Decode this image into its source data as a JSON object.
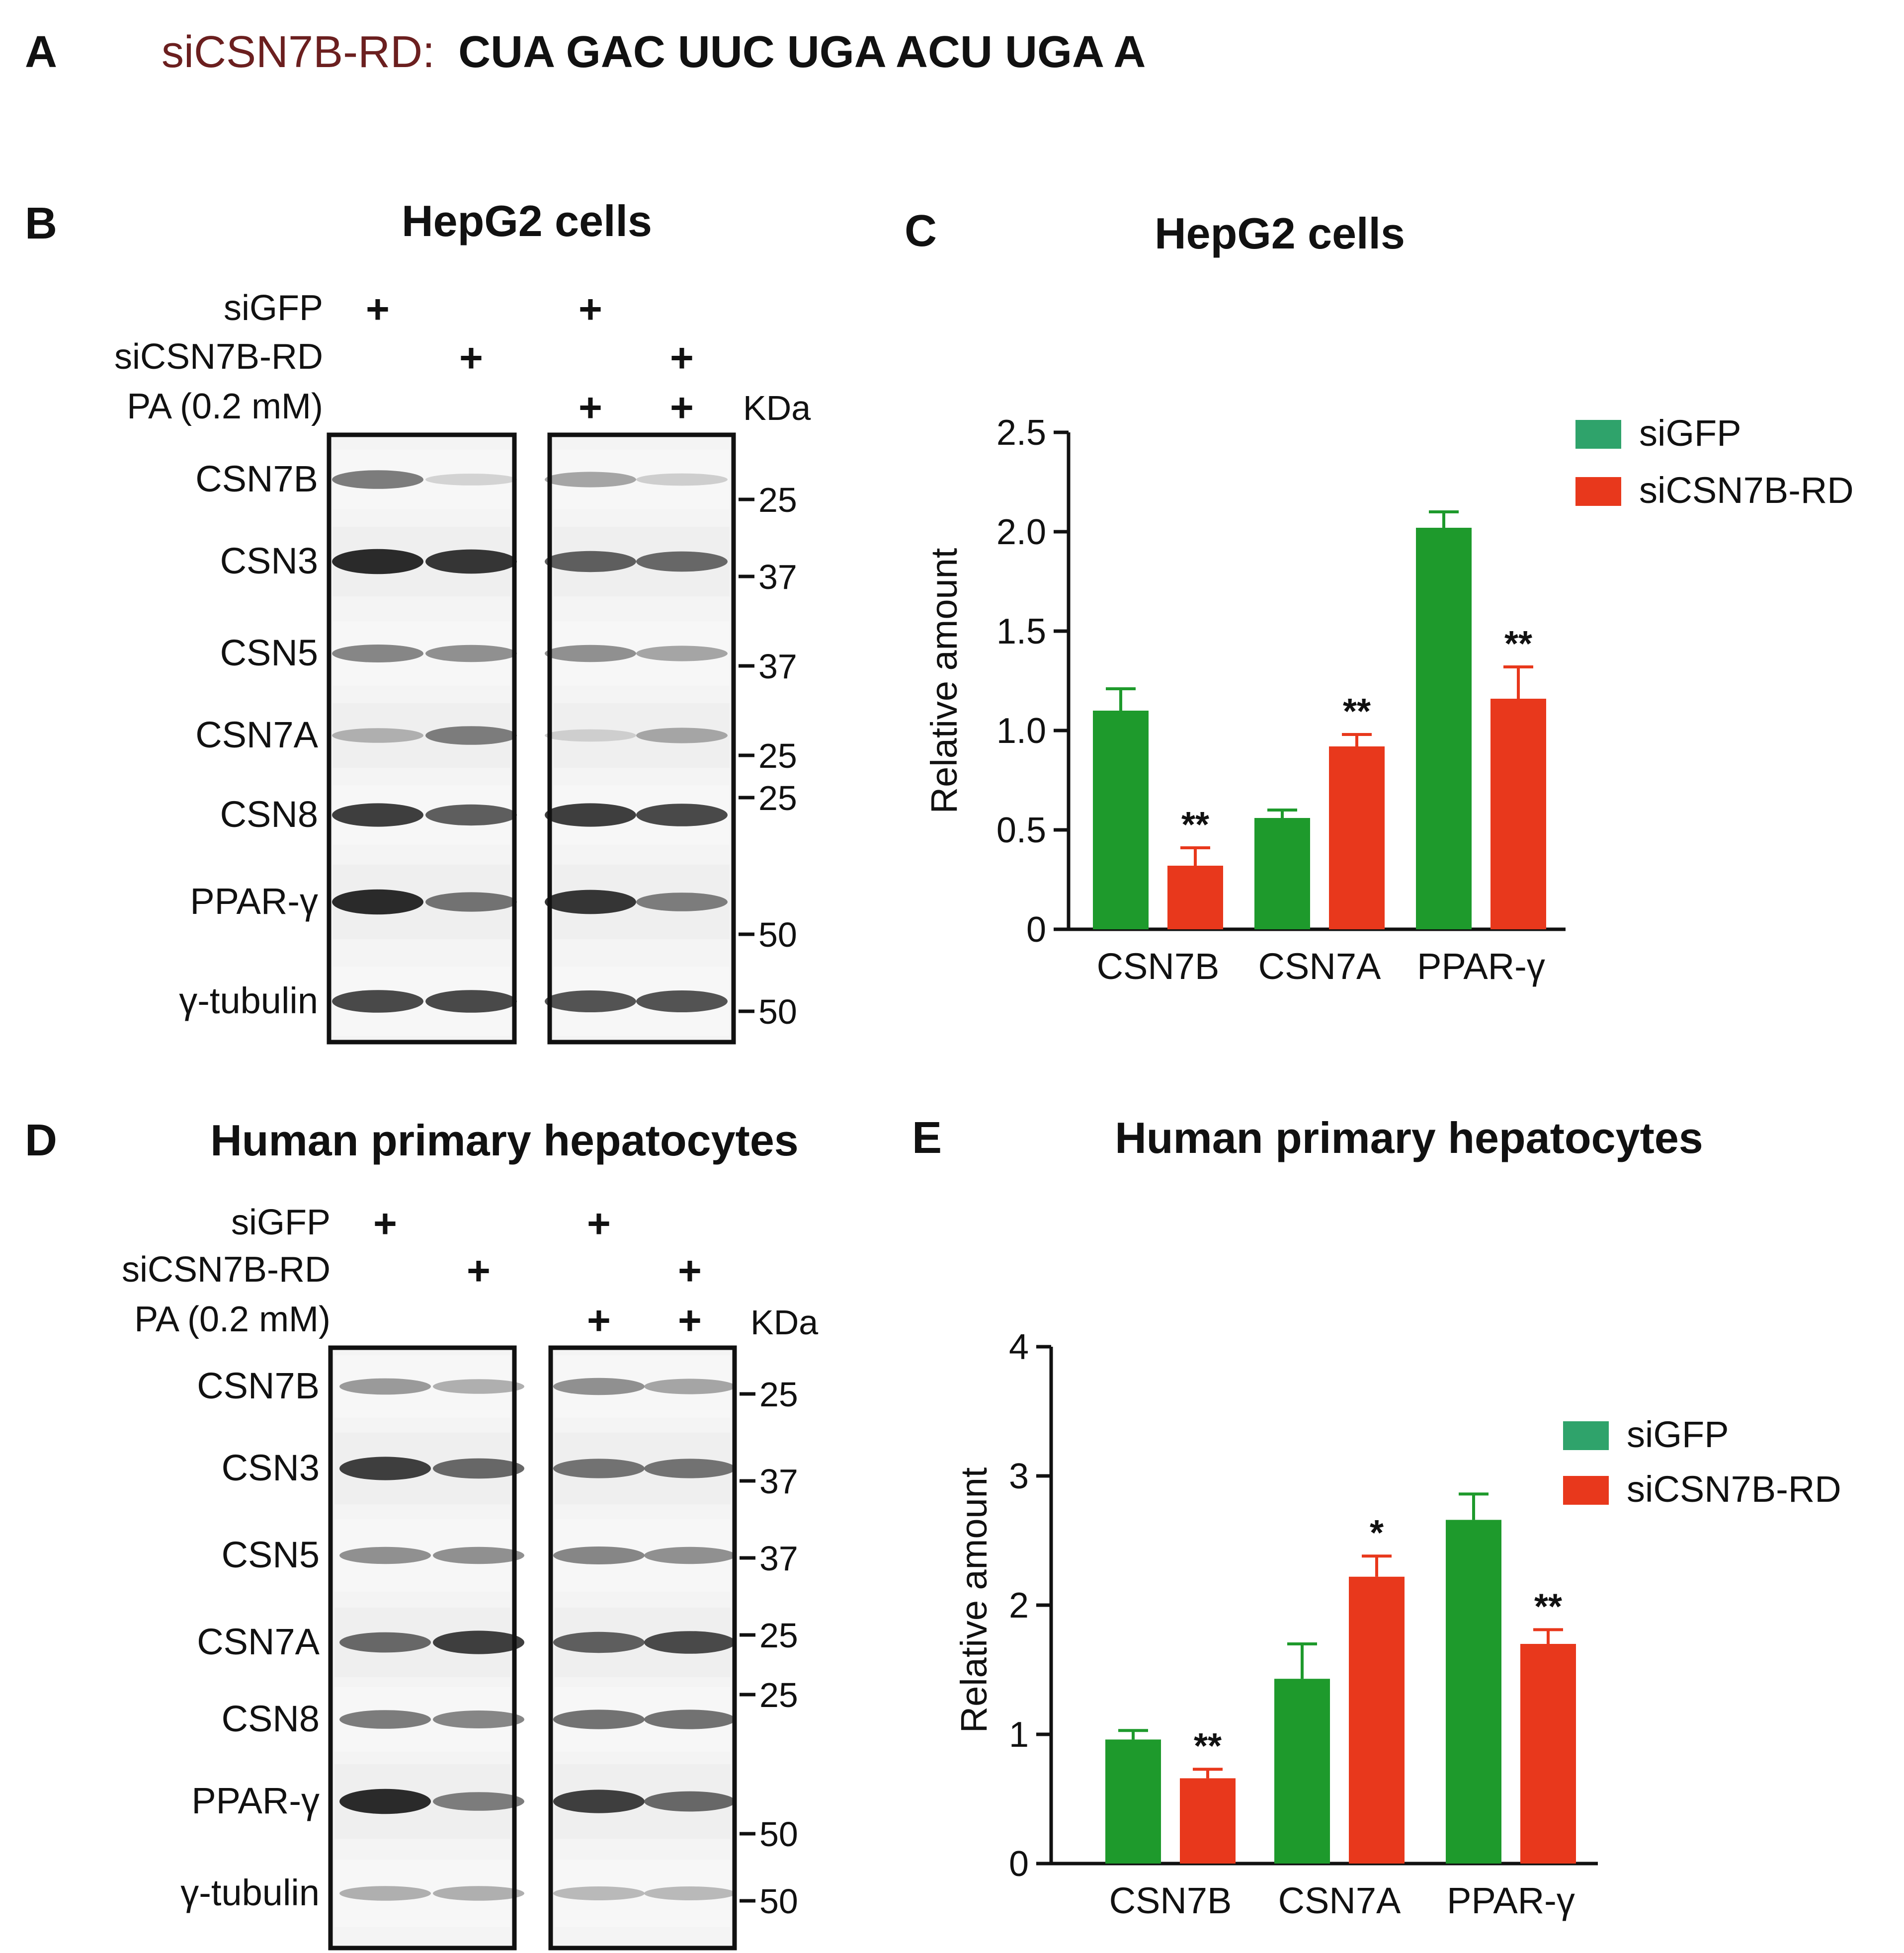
{
  "panel_a": {
    "letter": "A",
    "sirna_name": "siCSN7B-RD:",
    "sequence": "CUA GAC UUC UGA ACU UGA A"
  },
  "colors": {
    "sirna_name": "#6b1f1f",
    "siGFP": "#1e9a2c",
    "siCSN7B_RD": "#e8381c",
    "legend_siGFP": "#2fa36b",
    "legend_siCSN7B_RD": "#e8381c"
  },
  "blots": [
    {
      "letter": "B",
      "title": "HepG2 cells",
      "conditions": [
        {
          "label": "siGFP",
          "lanes": [
            "+",
            "",
            "+",
            ""
          ]
        },
        {
          "label": "siCSN7B-RD",
          "lanes": [
            "",
            "+",
            "",
            "+"
          ]
        },
        {
          "label": "PA (0.2 mM)",
          "lanes": [
            "",
            "",
            "+",
            "+"
          ]
        }
      ],
      "kda_label": "KDa",
      "rows": [
        {
          "label": "CSN7B",
          "markers": [
            "25"
          ],
          "intensity": [
            0.55,
            0.12,
            0.35,
            0.15
          ]
        },
        {
          "label": "CSN3",
          "markers": [
            "37"
          ],
          "intensity": [
            0.95,
            0.9,
            0.7,
            0.65
          ]
        },
        {
          "label": "CSN5",
          "markers": [
            "37"
          ],
          "intensity": [
            0.5,
            0.45,
            0.45,
            0.35
          ]
        },
        {
          "label": "CSN7A",
          "markers": [
            "25",
            "25"
          ],
          "intensity": [
            0.3,
            0.55,
            0.15,
            0.35
          ]
        },
        {
          "label": "CSN8",
          "markers": [],
          "intensity": [
            0.85,
            0.7,
            0.85,
            0.8
          ]
        },
        {
          "label": "PPAR-γ",
          "markers": [
            "50"
          ],
          "intensity": [
            0.95,
            0.6,
            0.9,
            0.55
          ]
        },
        {
          "label": "γ-tubulin",
          "markers": [
            "50"
          ],
          "intensity": [
            0.8,
            0.8,
            0.75,
            0.75
          ]
        }
      ]
    },
    {
      "letter": "D",
      "title": "Human primary hepatocytes",
      "conditions": [
        {
          "label": "siGFP",
          "lanes": [
            "+",
            "",
            "+",
            ""
          ]
        },
        {
          "label": "siCSN7B-RD",
          "lanes": [
            "",
            "+",
            "",
            "+"
          ]
        },
        {
          "label": "PA (0.2 mM)",
          "lanes": [
            "",
            "",
            "+",
            "+"
          ]
        }
      ],
      "kda_label": "KDa",
      "rows": [
        {
          "label": "CSN7B",
          "markers": [
            "25"
          ],
          "intensity": [
            0.4,
            0.3,
            0.45,
            0.35
          ]
        },
        {
          "label": "CSN3",
          "markers": [
            "37"
          ],
          "intensity": [
            0.85,
            0.65,
            0.6,
            0.6
          ]
        },
        {
          "label": "CSN5",
          "markers": [
            "37"
          ],
          "intensity": [
            0.45,
            0.45,
            0.5,
            0.45
          ]
        },
        {
          "label": "CSN7A",
          "markers": [
            "25",
            "25"
          ],
          "intensity": [
            0.65,
            0.85,
            0.7,
            0.8
          ]
        },
        {
          "label": "CSN8",
          "markers": [],
          "intensity": [
            0.55,
            0.5,
            0.6,
            0.6
          ]
        },
        {
          "label": "PPAR-γ",
          "markers": [
            "50"
          ],
          "intensity": [
            0.95,
            0.55,
            0.85,
            0.65
          ]
        },
        {
          "label": "γ-tubulin",
          "markers": [
            "50"
          ],
          "intensity": [
            0.3,
            0.3,
            0.25,
            0.25
          ]
        }
      ]
    }
  ],
  "chart_data": [
    {
      "type": "bar",
      "letter": "C",
      "title": "HepG2 cells",
      "ylabel": "Relative amount",
      "ylim": [
        0,
        2.5
      ],
      "yticks": [
        0,
        0.5,
        1.0,
        1.5,
        2.0,
        2.5
      ],
      "ytick_labels": [
        "0",
        "0.5",
        "1.0",
        "1.5",
        "2.0",
        "2.5"
      ],
      "categories": [
        "CSN7B",
        "CSN7A",
        "PPAR-γ"
      ],
      "series": [
        {
          "name": "siGFP",
          "values": [
            1.1,
            0.56,
            2.02
          ],
          "errors": [
            0.11,
            0.04,
            0.08
          ],
          "significance": [
            "",
            "",
            ""
          ]
        },
        {
          "name": "siCSN7B-RD",
          "values": [
            0.32,
            0.92,
            1.16
          ],
          "errors": [
            0.09,
            0.06,
            0.16
          ],
          "significance": [
            "**",
            "**",
            "**"
          ]
        }
      ],
      "legend": "top-right"
    },
    {
      "type": "bar",
      "letter": "E",
      "title": "Human primary hepatocytes",
      "ylabel": "Relative amount",
      "ylim": [
        0,
        4
      ],
      "yticks": [
        0,
        1,
        2,
        3,
        4
      ],
      "ytick_labels": [
        "0",
        "1",
        "2",
        "3",
        "4"
      ],
      "categories": [
        "CSN7B",
        "CSN7A",
        "PPAR-γ"
      ],
      "series": [
        {
          "name": "siGFP",
          "values": [
            0.96,
            1.43,
            2.66
          ],
          "errors": [
            0.07,
            0.27,
            0.2
          ],
          "significance": [
            "",
            "",
            ""
          ]
        },
        {
          "name": "siCSN7B-RD",
          "values": [
            0.66,
            2.22,
            1.7
          ],
          "errors": [
            0.07,
            0.16,
            0.11
          ],
          "significance": [
            "**",
            "*",
            "**"
          ]
        }
      ],
      "legend": "top-right"
    }
  ]
}
